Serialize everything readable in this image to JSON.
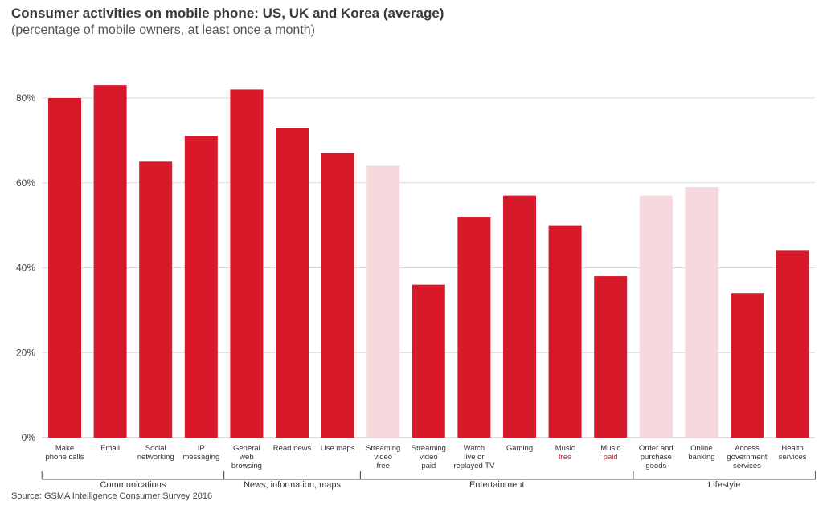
{
  "title": "Consumer activities on mobile phone: US, UK and Korea (average)",
  "subtitle": "(percentage of mobile owners, at least once a month)",
  "source": "Source: GSMA Intelligence Consumer Survey 2016",
  "colors": {
    "bar": "#d7192a",
    "bar_light": "#f6d9dd",
    "label_light": "#d7192a",
    "grid": "#d9d9d9",
    "axis_text": "#444444"
  },
  "chart_data": {
    "type": "bar",
    "title": "Consumer activities on mobile phone: US, UK and Korea (average)",
    "subtitle": "(percentage of mobile owners, at least once a month)",
    "ylim": [
      0,
      100
    ],
    "yticks": [
      0,
      20,
      40,
      60,
      80
    ],
    "ytick_labels": [
      "0%",
      "20%",
      "40%",
      "60%",
      "80%"
    ],
    "grid": true,
    "categories": [
      [
        "Make",
        "phone calls"
      ],
      [
        "Email"
      ],
      [
        "Social",
        "networking"
      ],
      [
        "IP",
        "messaging"
      ],
      [
        "General",
        "web",
        "browsing"
      ],
      [
        "Read news"
      ],
      [
        "Use maps"
      ],
      [
        "Streaming",
        "video",
        "free"
      ],
      [
        "Streaming",
        "video",
        "paid"
      ],
      [
        "Watch",
        "live or",
        "replayed TV"
      ],
      [
        "Gaming"
      ],
      [
        "Music",
        "free"
      ],
      [
        "Music",
        "paid"
      ],
      [
        "Order and",
        "purchase",
        "goods"
      ],
      [
        "Online",
        "banking"
      ],
      [
        "Access",
        "government",
        "services"
      ],
      [
        "Health",
        "services"
      ]
    ],
    "values": [
      80,
      83,
      65,
      71,
      82,
      73,
      67,
      64,
      36,
      52,
      57,
      50,
      38,
      57,
      59,
      34,
      44
    ],
    "highlight": [
      false,
      false,
      false,
      false,
      false,
      false,
      false,
      true,
      false,
      false,
      false,
      false,
      false,
      true,
      true,
      false,
      false
    ],
    "groups": [
      {
        "label": "Communications",
        "start": 0,
        "end": 3
      },
      {
        "label": "News, information, maps",
        "start": 4,
        "end": 6
      },
      {
        "label": "Entertainment",
        "start": 7,
        "end": 12
      },
      {
        "label": "Lifestyle",
        "start": 13,
        "end": 16
      }
    ]
  }
}
